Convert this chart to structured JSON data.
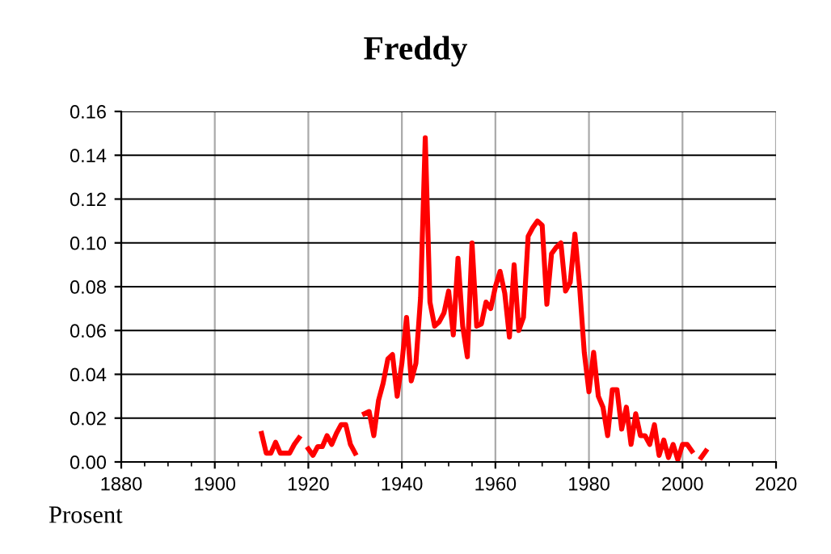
{
  "chart_data": {
    "type": "line",
    "title": "Freddy",
    "ylabel": "Prosent",
    "x": [
      1910,
      1911,
      1912,
      1913,
      1914,
      1915,
      1916,
      1917,
      1918,
      1919,
      1920,
      1921,
      1922,
      1923,
      1924,
      1925,
      1926,
      1927,
      1928,
      1929,
      1930,
      1931,
      1932,
      1933,
      1934,
      1935,
      1936,
      1937,
      1938,
      1939,
      1940,
      1941,
      1942,
      1943,
      1944,
      1945,
      1946,
      1947,
      1948,
      1949,
      1950,
      1951,
      1952,
      1953,
      1954,
      1955,
      1956,
      1957,
      1958,
      1959,
      1960,
      1961,
      1962,
      1963,
      1964,
      1965,
      1966,
      1967,
      1968,
      1969,
      1970,
      1971,
      1972,
      1973,
      1974,
      1975,
      1976,
      1977,
      1978,
      1979,
      1980,
      1981,
      1982,
      1983,
      1984,
      1985,
      1986,
      1987,
      1988,
      1989,
      1990,
      1991,
      1992,
      1993,
      1994,
      1995,
      1996,
      1997,
      1998,
      1999,
      2000,
      2001,
      2002,
      2003,
      2004,
      2005
    ],
    "series": [
      {
        "color": "#ff0000",
        "values": [
          0.013,
          0.004,
          0.004,
          0.009,
          0.004,
          0.004,
          0.004,
          0.008,
          0.011,
          null,
          0.006,
          0.003,
          0.007,
          0.007,
          0.012,
          0.008,
          0.013,
          0.017,
          0.017,
          0.008,
          0.004,
          null,
          0.022,
          0.023,
          0.012,
          0.028,
          0.036,
          0.047,
          0.049,
          0.03,
          0.045,
          0.066,
          0.037,
          0.045,
          0.075,
          0.148,
          0.073,
          0.062,
          0.064,
          0.068,
          0.078,
          0.058,
          0.093,
          0.062,
          0.048,
          0.1,
          0.062,
          0.063,
          0.073,
          0.07,
          0.08,
          0.087,
          0.077,
          0.057,
          0.09,
          0.06,
          0.066,
          0.103,
          0.107,
          0.11,
          0.108,
          0.072,
          0.095,
          0.098,
          0.1,
          0.078,
          0.082,
          0.104,
          0.08,
          0.05,
          0.032,
          0.05,
          0.03,
          0.025,
          0.012,
          0.033,
          0.033,
          0.015,
          0.025,
          0.008,
          0.022,
          0.012,
          0.012,
          0.008,
          0.017,
          0.003,
          0.01,
          0.002,
          0.008,
          0.001,
          0.008,
          0.008,
          0.005,
          null,
          0.002,
          0.005
        ]
      }
    ],
    "xlim": [
      1880,
      2020
    ],
    "xticks": [
      1880,
      1900,
      1920,
      1940,
      1960,
      1980,
      2000,
      2020
    ],
    "ylim": [
      0,
      0.16
    ],
    "yticks": [
      {
        "value": 0,
        "label": "0.00"
      },
      {
        "value": 0.02,
        "label": "0.02"
      },
      {
        "value": 0.04,
        "label": "0.04"
      },
      {
        "value": 0.06,
        "label": "0.06"
      },
      {
        "value": 0.08,
        "label": "0.08"
      },
      {
        "value": 0.1,
        "label": "0.10"
      },
      {
        "value": 0.12,
        "label": "0.12"
      },
      {
        "value": 0.14,
        "label": "0.14"
      },
      {
        "value": 0.16,
        "label": "0.16"
      }
    ],
    "grid": true,
    "legend": false,
    "marker": "none",
    "line_style": "solid"
  }
}
